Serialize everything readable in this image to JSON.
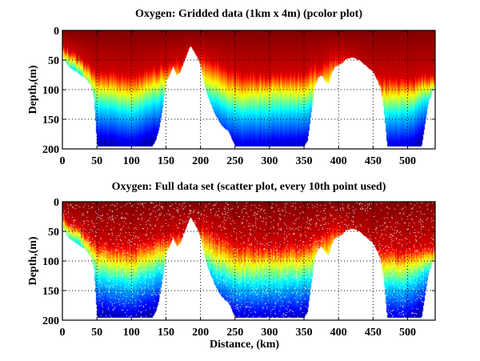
{
  "chart_data": [
    {
      "type": "heatmap",
      "title": "Oxygen: Gridded data (1km x 4m) (pcolor plot)",
      "xlabel": "",
      "ylabel": "Depth,(m)",
      "xlim": [
        0,
        540
      ],
      "ylim": [
        200,
        0
      ],
      "y_reversed": true,
      "xticks": [
        0,
        50,
        100,
        150,
        200,
        250,
        300,
        350,
        400,
        450,
        500
      ],
      "yticks": [
        0,
        50,
        100,
        150,
        200
      ],
      "grid": true,
      "colormap": "jet",
      "colormap_note": "red = high oxygen (surface), blue = low oxygen (deep)",
      "bottom_profile": {
        "distance_km": [
          0,
          5,
          10,
          20,
          30,
          40,
          45,
          50,
          60,
          80,
          100,
          120,
          130,
          135,
          140,
          145,
          150,
          155,
          160,
          165,
          170,
          175,
          180,
          185,
          190,
          195,
          200,
          205,
          210,
          220,
          230,
          240,
          250,
          255,
          260,
          280,
          300,
          320,
          340,
          350,
          355,
          360,
          365,
          370,
          375,
          380,
          385,
          390,
          395,
          400,
          405,
          410,
          420,
          430,
          440,
          450,
          460,
          465,
          470,
          480,
          500,
          510,
          520,
          530,
          540
        ],
        "depth_m": [
          40,
          55,
          62,
          70,
          78,
          90,
          110,
          195,
          195,
          195,
          195,
          195,
          195,
          185,
          165,
          130,
          85,
          75,
          60,
          75,
          70,
          55,
          40,
          25,
          35,
          45,
          60,
          90,
          110,
          140,
          160,
          170,
          195,
          195,
          195,
          195,
          195,
          195,
          195,
          195,
          185,
          140,
          95,
          80,
          75,
          85,
          90,
          70,
          60,
          58,
          55,
          48,
          45,
          50,
          60,
          70,
          95,
          130,
          195,
          195,
          195,
          195,
          195,
          120,
          90
        ]
      },
      "isolines_depth_m": {
        "distance_km": [
          0,
          25,
          50,
          100,
          140,
          200,
          250,
          300,
          350,
          400,
          450,
          500,
          540
        ],
        "red_to_yellow": [
          25,
          45,
          70,
          75,
          60,
          40,
          70,
          75,
          70,
          40,
          80,
          80,
          75
        ],
        "yellow_to_cyan": [
          40,
          60,
          100,
          110,
          90,
          80,
          110,
          105,
          105,
          80,
          115,
          110,
          95
        ],
        "cyan_to_blue": [
          55,
          75,
          130,
          140,
          120,
          110,
          140,
          140,
          135,
          110,
          145,
          140,
          110
        ]
      }
    },
    {
      "type": "scatter",
      "title": "Oxygen: Full data set (scatter plot, every 10th point used)",
      "xlabel": "Distance, (km)",
      "ylabel": "Depth,(m)",
      "xlim": [
        0,
        540
      ],
      "ylim": [
        200,
        0
      ],
      "y_reversed": true,
      "xticks": [
        0,
        50,
        100,
        150,
        200,
        250,
        300,
        350,
        400,
        450,
        500
      ],
      "yticks": [
        0,
        50,
        100,
        150,
        200
      ],
      "grid": true,
      "colormap": "jet",
      "colormap_note": "same oxygen field as gridded plot, shown as sampled points with gaps",
      "bottom_profile_ref": "same as gridded plot (max sampled depth ~190 m)"
    }
  ],
  "labels": {
    "top_title": "Oxygen: Gridded data (1km x 4m) (pcolor plot)",
    "bottom_title": "Oxygen: Full data set (scatter plot, every 10th point used)",
    "ylabel": "Depth,(m)",
    "xlabel": "Distance, (km)"
  }
}
